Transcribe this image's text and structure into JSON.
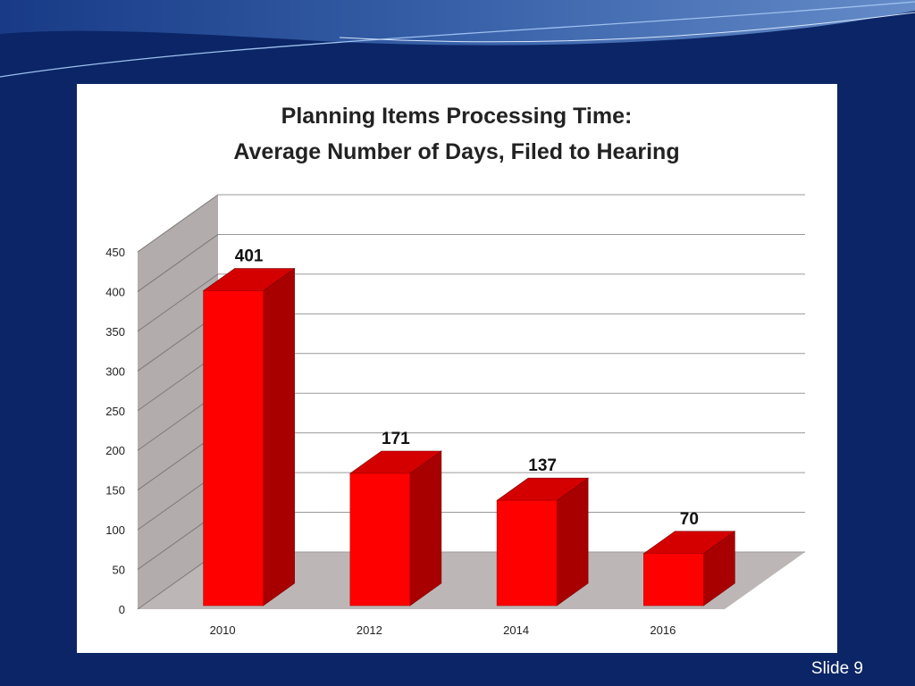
{
  "slide": {
    "slide_number_text": "Slide 9",
    "background_color": "#0b2566"
  },
  "chart_data": {
    "type": "bar",
    "title_lines": [
      "Planning Items Processing Time:",
      "Average Number of Days, Filed to Hearing"
    ],
    "categories": [
      "2010",
      "2012",
      "2014",
      "2016"
    ],
    "values": [
      401,
      171,
      137,
      70
    ],
    "data_labels": [
      "401",
      "171",
      "137",
      "70"
    ],
    "ylim": [
      0,
      450
    ],
    "yticks": [
      0,
      50,
      100,
      150,
      200,
      250,
      300,
      350,
      400,
      450
    ],
    "grid": true,
    "style": "3d-column",
    "colors": {
      "bar_front": "#ff0000",
      "bar_side": "#a80000",
      "bar_top": "#d40000",
      "wall": "#b2adac",
      "floor": "#bcb7b6"
    }
  }
}
